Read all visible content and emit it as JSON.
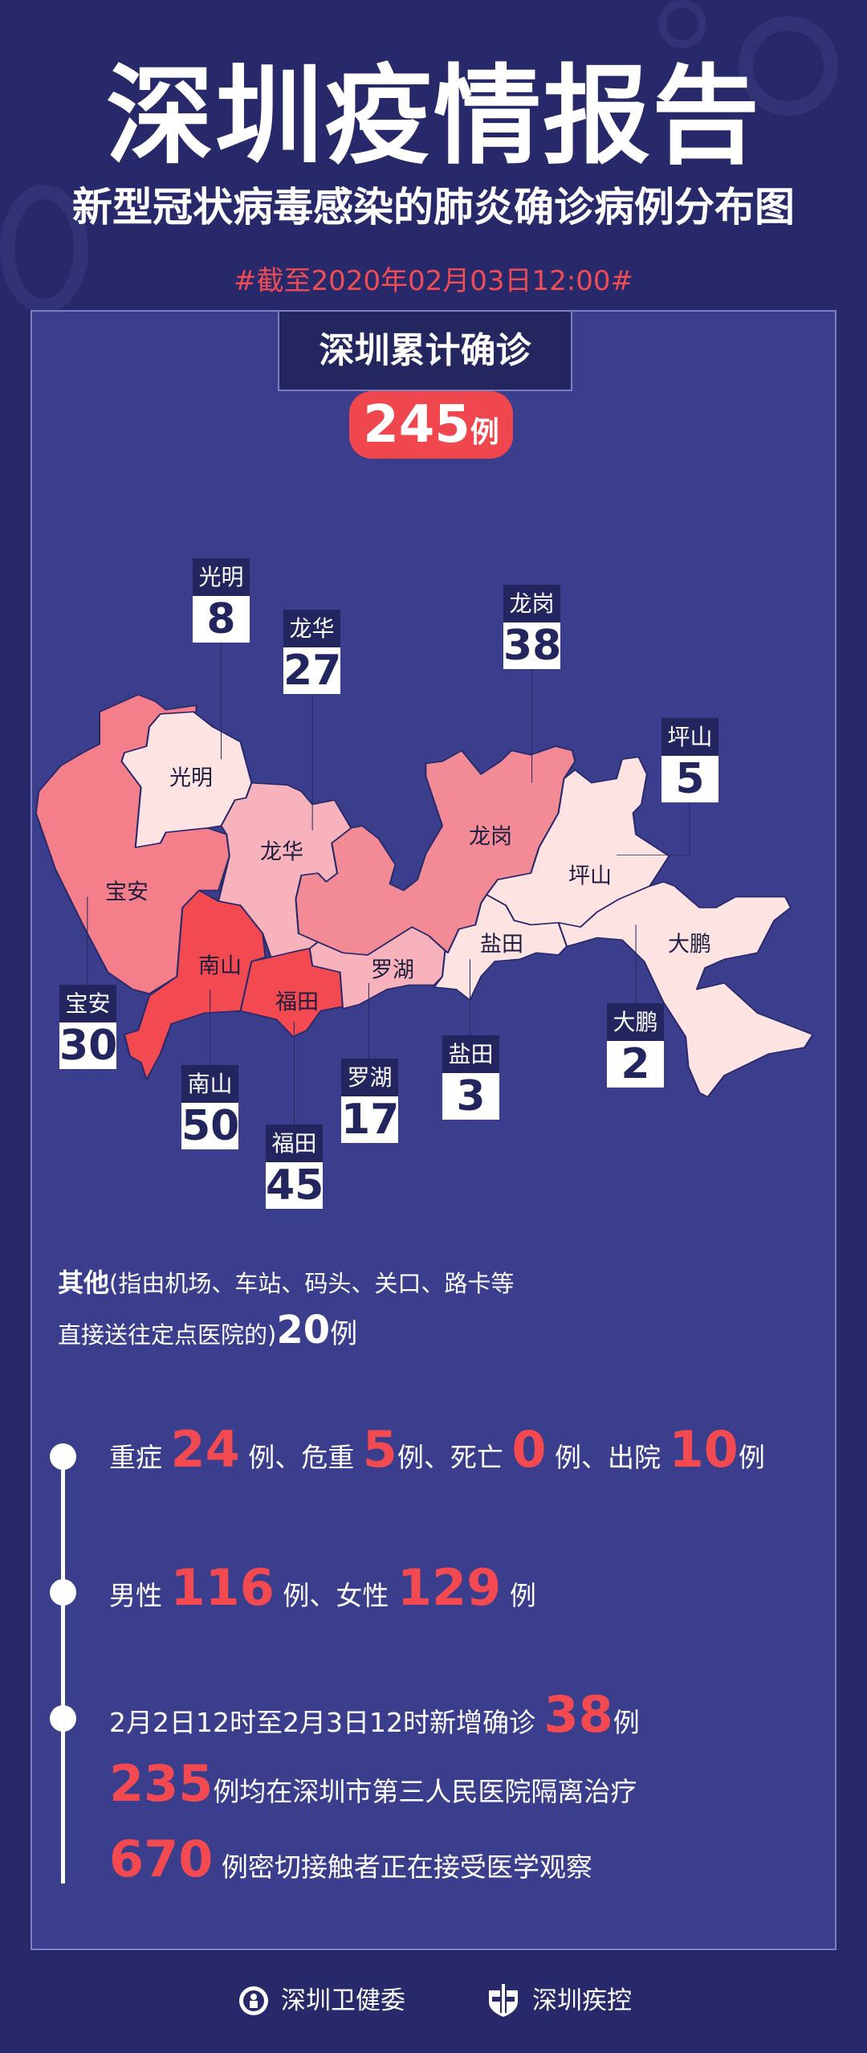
{
  "header": {
    "title": "深圳疫情报告",
    "subtitle": "新型冠状病毒感染的肺炎确诊病例分布图",
    "date": "#截至2020年02月03日12:00#"
  },
  "total": {
    "label": "深圳累计确诊",
    "value": "245",
    "unit": "例"
  },
  "colors": {
    "background": "#28296a",
    "panel": "#3b3e8c",
    "accent": "#f24a50",
    "navy": "#23255f"
  },
  "districts": [
    {
      "name": "光明",
      "count": "8",
      "color": "#fde4e3"
    },
    {
      "name": "龙华",
      "count": "27",
      "color": "#f8b2bc"
    },
    {
      "name": "龙岗",
      "count": "38",
      "color": "#f38b97"
    },
    {
      "name": "坪山",
      "count": "5",
      "color": "#fde4e3"
    },
    {
      "name": "宝安",
      "count": "30",
      "color": "#f47f8a"
    },
    {
      "name": "南山",
      "count": "50",
      "color": "#f24a50"
    },
    {
      "name": "福田",
      "count": "45",
      "color": "#f24a50"
    },
    {
      "name": "罗湖",
      "count": "17",
      "color": "#f8b2bc"
    },
    {
      "name": "盐田",
      "count": "3",
      "color": "#fde4e3"
    },
    {
      "name": "大鹏",
      "count": "2",
      "color": "#fde4e3"
    }
  ],
  "other": {
    "label": "其他",
    "line1": "(指由机场、车站、码头、关口、路卡等",
    "line2": "直接送往定点医院的)",
    "value": "20",
    "unit": "例"
  },
  "stats": [
    [
      {
        "t": "重症 "
      },
      {
        "t": "24",
        "hl": true
      },
      {
        "t": " 例、危重 "
      },
      {
        "t": "5",
        "hl": true
      },
      {
        "t": "例、死亡 "
      },
      {
        "t": "0",
        "hl": true
      },
      {
        "t": " 例、出院 "
      },
      {
        "t": "10",
        "hl": true
      },
      {
        "t": "例"
      }
    ],
    [
      {
        "t": "男性 "
      },
      {
        "t": "116",
        "hl": true
      },
      {
        "t": " 例、女性 "
      },
      {
        "t": "129",
        "hl": true
      },
      {
        "t": " 例"
      }
    ],
    [
      {
        "t": "2月2日12时至2月3日12时新增确诊 "
      },
      {
        "t": "38",
        "hl": true
      },
      {
        "t": "例"
      }
    ],
    [
      {
        "t": "235",
        "hl": true
      },
      {
        "t": "例均在深圳市第三人民医院隔离治疗"
      }
    ],
    [
      {
        "t": "670",
        "hl": true
      },
      {
        "t": " 例密切接触者正在接受医学观察"
      }
    ]
  ],
  "footer": {
    "org1": "深圳卫健委",
    "org2": "深圳疾控",
    "icon1": "emblem-icon",
    "icon2": "shield-cross-icon"
  }
}
